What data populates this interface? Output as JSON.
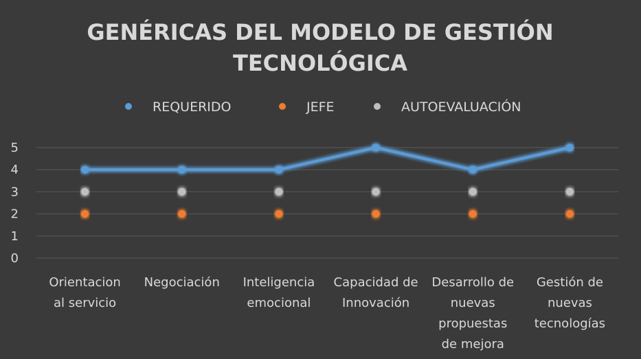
{
  "chart_data": {
    "type": "line",
    "title": [
      "GENÉRICAS DEL MODELO DE GESTIÓN",
      "TECNOLÓGICA"
    ],
    "categories": [
      [
        "Orientacion",
        "al servicio"
      ],
      [
        "Negociación"
      ],
      [
        "Inteligencia",
        "emocional"
      ],
      [
        "Capacidad de",
        "Innovación"
      ],
      [
        "Desarrollo de",
        "nuevas",
        "propuestas",
        "de mejora"
      ],
      [
        "Gestión de",
        "nuevas",
        "tecnologías"
      ]
    ],
    "series": [
      {
        "name": "REQUERIDO",
        "color": "#5b9bd5",
        "values": [
          4,
          4,
          4,
          5,
          4,
          5
        ]
      },
      {
        "name": "JEFE",
        "color": "#ed7d31",
        "values": [
          2,
          2,
          2,
          2,
          2,
          2
        ]
      },
      {
        "name": "AUTOEVALUACIÓN",
        "color": "#bfbfbf",
        "values": [
          3,
          3,
          3,
          3,
          3,
          3
        ]
      }
    ],
    "ylim": [
      0,
      5
    ],
    "yticks": [
      "0",
      "1",
      "2",
      "3",
      "4",
      "5"
    ],
    "grid": true,
    "legend_position": "top",
    "background": "#3a3a3a"
  }
}
